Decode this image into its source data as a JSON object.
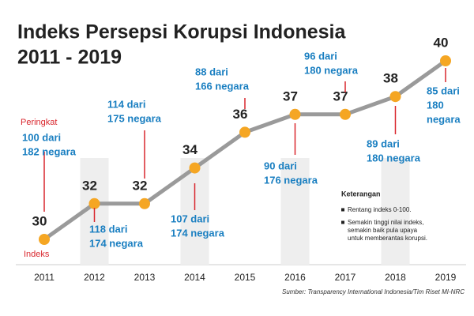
{
  "chart_data": {
    "type": "line",
    "title": "Indeks Persepsi Korupsi Indonesia",
    "subtitle": "2011 - 2019",
    "categories": [
      "2011",
      "2012",
      "2013",
      "2014",
      "2015",
      "2016",
      "2017",
      "2018",
      "2019"
    ],
    "series": [
      {
        "name": "Indeks",
        "color": "#f5a623",
        "values": [
          30,
          32,
          32,
          34,
          36,
          37,
          37,
          38,
          40
        ]
      }
    ],
    "line_color": "#9a9a9a",
    "rank_label": "Peringkat",
    "rankings": [
      [
        "100 dari",
        "182 negara"
      ],
      [
        "118 dari",
        "174 negara"
      ],
      [
        "114 dari",
        "175 negara"
      ],
      [
        "107 dari",
        "174 negara"
      ],
      [
        "88 dari",
        "166 negara"
      ],
      [
        "90 dari",
        "176 negara"
      ],
      [
        "96 dari",
        "180 negara"
      ],
      [
        "89 dari",
        "180 negara"
      ],
      [
        "85 dari",
        "180",
        "negara"
      ]
    ],
    "legend_title": "Keterangan",
    "legend_notes": [
      [
        "Rentang indeks 0-100."
      ],
      [
        "Semakin tinggi nilai indeks,",
        "semakin baik pula upaya",
        "untuk memberantas korupsi."
      ]
    ],
    "source": "Sumber: Transparency International Indonesia/Tim Riset MI-NRC"
  }
}
